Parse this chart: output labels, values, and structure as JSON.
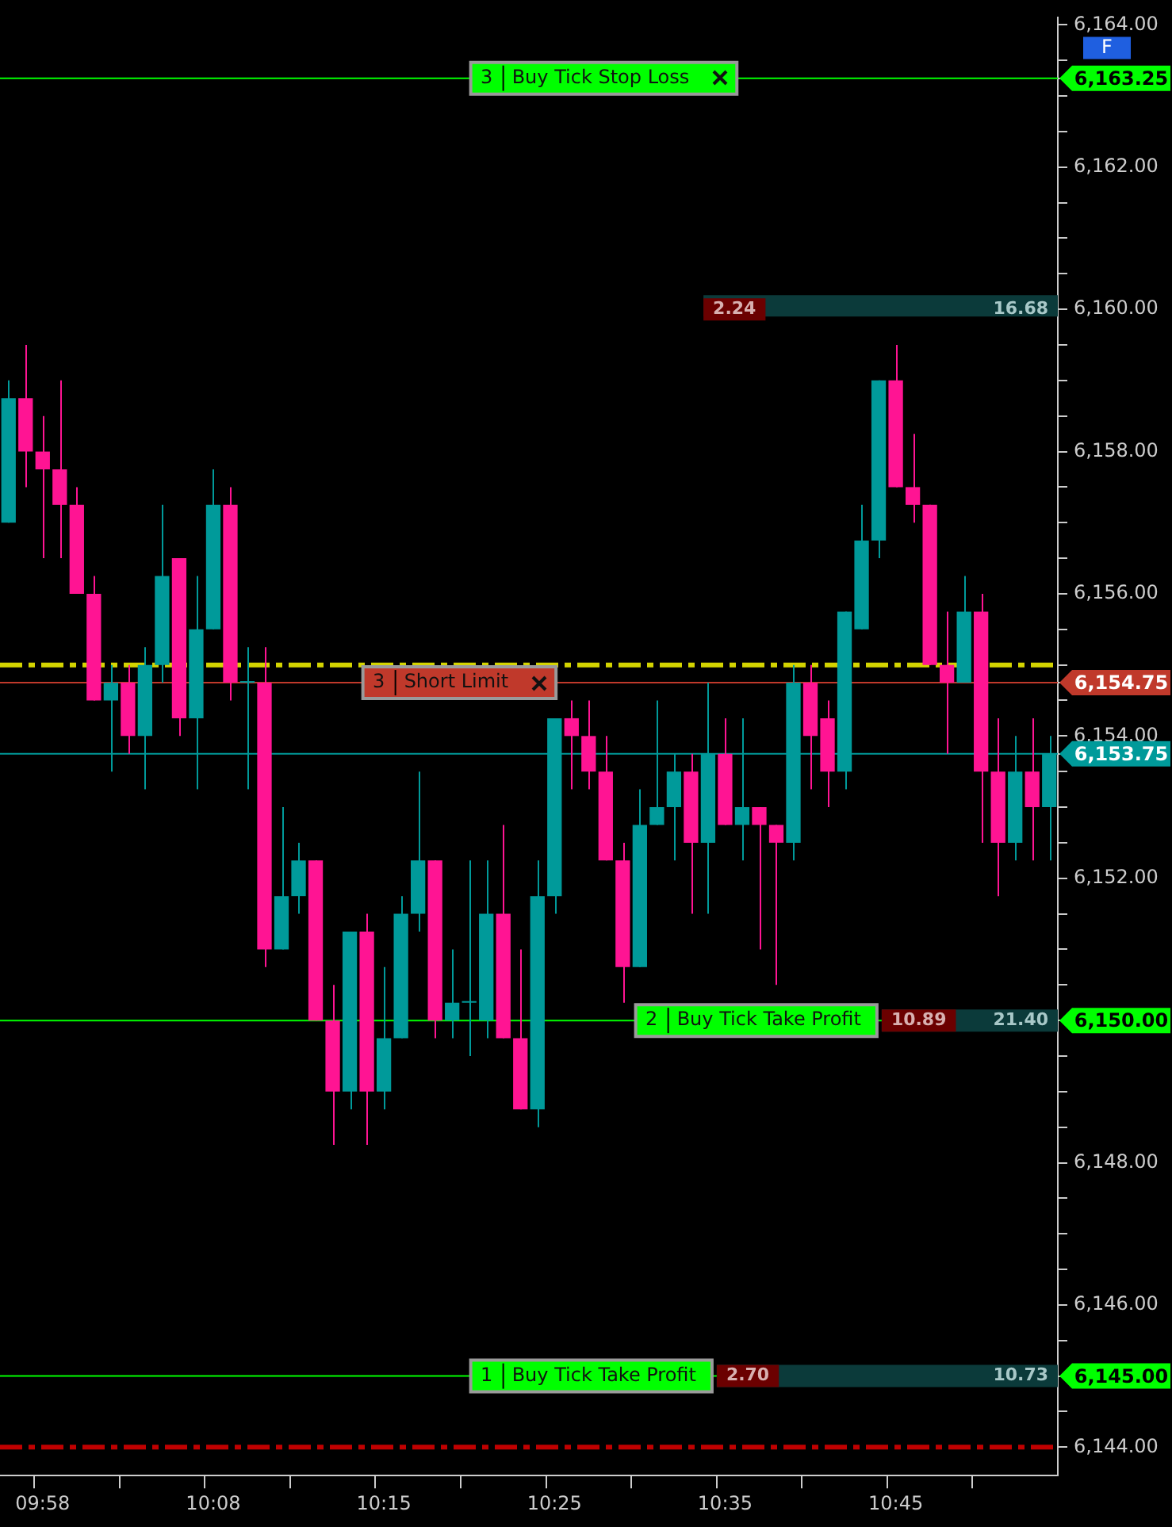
{
  "chart_data": {
    "type": "candlestick",
    "categories": [
      null,
      null,
      "09:58",
      null,
      null,
      null,
      null,
      null,
      null,
      null,
      null,
      null,
      "10:08",
      null,
      null,
      null,
      null,
      null,
      null,
      null,
      null,
      null,
      "10:15",
      null,
      null,
      null,
      null,
      null,
      null,
      null,
      null,
      null,
      "10:25",
      null,
      null,
      null,
      null,
      null,
      null,
      null,
      null,
      null,
      "10:35",
      null,
      null,
      null,
      null,
      null,
      null,
      null,
      null,
      null,
      "10:45",
      null,
      null,
      null,
      null,
      null,
      null,
      null,
      null,
      null
    ],
    "ohlc": [
      [
        6157.0,
        6159.0,
        6157.0,
        6158.75
      ],
      [
        6158.75,
        6159.5,
        6157.5,
        6158.0
      ],
      [
        6158.0,
        6158.5,
        6156.5,
        6157.75
      ],
      [
        6157.75,
        6159.0,
        6156.5,
        6157.25
      ],
      [
        6157.25,
        6157.5,
        6156.0,
        6156.0
      ],
      [
        6156.0,
        6156.25,
        6154.5,
        6154.5
      ],
      [
        6154.5,
        6155.0,
        6153.5,
        6154.75
      ],
      [
        6154.75,
        6155.0,
        6153.75,
        6154.0
      ],
      [
        6154.0,
        6155.25,
        6153.25,
        6155.0
      ],
      [
        6155.0,
        6157.25,
        6154.75,
        6156.25
      ],
      [
        6156.5,
        6156.5,
        6154.0,
        6154.25
      ],
      [
        6154.25,
        6156.25,
        6153.25,
        6155.5
      ],
      [
        6155.5,
        6157.75,
        6155.5,
        6157.25
      ],
      [
        6157.25,
        6157.5,
        6154.5,
        6154.75
      ],
      [
        6154.75,
        6155.25,
        6153.25,
        6154.75
      ],
      [
        6154.75,
        6155.25,
        6150.75,
        6151.0
      ],
      [
        6151.0,
        6153.0,
        6151.0,
        6151.75
      ],
      [
        6151.75,
        6152.5,
        6151.5,
        6152.25
      ],
      [
        6152.25,
        6152.25,
        6150.0,
        6150.0
      ],
      [
        6150.0,
        6150.5,
        6148.25,
        6149.0
      ],
      [
        6149.0,
        6151.25,
        6148.75,
        6151.25
      ],
      [
        6151.25,
        6151.5,
        6148.25,
        6149.0
      ],
      [
        6149.0,
        6150.75,
        6148.75,
        6149.75
      ],
      [
        6149.75,
        6151.75,
        6149.75,
        6151.5
      ],
      [
        6151.5,
        6153.5,
        6151.25,
        6152.25
      ],
      [
        6152.25,
        6152.25,
        6149.75,
        6150.0
      ],
      [
        6150.0,
        6151.0,
        6149.75,
        6150.25
      ],
      [
        6150.25,
        6152.25,
        6149.5,
        6150.25
      ],
      [
        6150.0,
        6152.25,
        6149.75,
        6151.5
      ],
      [
        6151.5,
        6152.75,
        6149.75,
        6149.75
      ],
      [
        6149.75,
        6151.0,
        6148.75,
        6148.75
      ],
      [
        6148.75,
        6152.25,
        6148.5,
        6151.75
      ],
      [
        6151.75,
        6154.25,
        6151.5,
        6154.25
      ],
      [
        6154.25,
        6154.5,
        6153.25,
        6154.0
      ],
      [
        6154.0,
        6154.5,
        6153.25,
        6153.5
      ],
      [
        6153.5,
        6154.0,
        6152.25,
        6152.25
      ],
      [
        6152.25,
        6152.5,
        6150.25,
        6150.75
      ],
      [
        6150.75,
        6153.25,
        6150.75,
        6152.75
      ],
      [
        6152.75,
        6154.5,
        6152.75,
        6153.0
      ],
      [
        6153.0,
        6153.75,
        6152.25,
        6153.5
      ],
      [
        6153.5,
        6153.75,
        6151.5,
        6152.5
      ],
      [
        6152.5,
        6154.75,
        6151.5,
        6153.75
      ],
      [
        6153.75,
        6154.25,
        6152.75,
        6152.75
      ],
      [
        6152.75,
        6154.25,
        6152.25,
        6153.0
      ],
      [
        6153.0,
        6153.0,
        6151.0,
        6152.75
      ],
      [
        6152.75,
        6152.75,
        6150.5,
        6152.5
      ],
      [
        6152.5,
        6155.0,
        6152.25,
        6154.75
      ],
      [
        6154.75,
        6155.0,
        6153.25,
        6154.0
      ],
      [
        6154.25,
        6154.5,
        6153.0,
        6153.5
      ],
      [
        6153.5,
        6155.75,
        6153.25,
        6155.75
      ],
      [
        6155.5,
        6157.25,
        6155.5,
        6156.75
      ],
      [
        6156.75,
        6159.0,
        6156.5,
        6159.0
      ],
      [
        6159.0,
        6159.5,
        6157.5,
        6157.5
      ],
      [
        6157.5,
        6158.25,
        6157.0,
        6157.25
      ],
      [
        6157.25,
        6157.25,
        6155.0,
        6155.0
      ],
      [
        6155.0,
        6155.75,
        6153.75,
        6154.75
      ],
      [
        6154.75,
        6156.25,
        6154.75,
        6155.75
      ],
      [
        6155.75,
        6156.0,
        6152.5,
        6153.5
      ],
      [
        6153.5,
        6154.25,
        6151.75,
        6152.5
      ],
      [
        6152.5,
        6154.0,
        6152.25,
        6153.5
      ],
      [
        6153.5,
        6154.25,
        6152.25,
        6153.0
      ],
      [
        6153.0,
        6154.0,
        6152.25,
        6153.75
      ]
    ],
    "colors": [
      "#009a9a",
      "#ff1493",
      "#ff1493",
      "#ff1493",
      "#ff1493",
      "#ff1493",
      "#009a9a",
      "#ff1493",
      "#009a9a",
      "#009a9a",
      "#ff1493",
      "#009a9a",
      "#009a9a",
      "#ff1493",
      "#009a9a",
      "#ff1493",
      "#009a9a",
      "#009a9a",
      "#ff1493",
      "#ff1493",
      "#009a9a",
      "#ff1493",
      "#009a9a",
      "#009a9a",
      "#009a9a",
      "#ff1493",
      "#009a9a",
      "#009a9a",
      "#009a9a",
      "#ff1493",
      "#ff1493",
      "#009a9a",
      "#009a9a",
      "#ff1493",
      "#ff1493",
      "#ff1493",
      "#ff1493",
      "#009a9a",
      "#009a9a",
      "#009a9a",
      "#ff1493",
      "#009a9a",
      "#ff1493",
      "#009a9a",
      "#ff1493",
      "#ff1493",
      "#009a9a",
      "#ff1493",
      "#ff1493",
      "#009a9a",
      "#009a9a",
      "#009a9a",
      "#ff1493",
      "#ff1493",
      "#ff1493",
      "#ff1493",
      "#009a9a",
      "#ff1493",
      "#ff1493",
      "#009a9a",
      "#ff1493",
      "#009a9a"
    ],
    "ylim": [
      6143.6,
      6164.1
    ],
    "yticks": [
      {
        "value": 6144,
        "label": "6,144.00"
      },
      {
        "value": 6144.5,
        "label": null
      },
      {
        "value": 6145,
        "label": "6,145.00"
      },
      {
        "value": 6145.5,
        "label": null
      },
      {
        "value": 6146,
        "label": "6,146.00"
      },
      {
        "value": 6146.5,
        "label": null
      },
      {
        "value": 6147,
        "label": null
      },
      {
        "value": 6147.5,
        "label": null
      },
      {
        "value": 6148,
        "label": "6,148.00"
      },
      {
        "value": 6148.5,
        "label": null
      },
      {
        "value": 6149,
        "label": null
      },
      {
        "value": 6149.5,
        "label": null
      },
      {
        "value": 6150,
        "label": "6,150.00"
      },
      {
        "value": 6150.5,
        "label": null
      },
      {
        "value": 6151,
        "label": null
      },
      {
        "value": 6151.5,
        "label": null
      },
      {
        "value": 6152,
        "label": "6,152.00"
      },
      {
        "value": 6152.5,
        "label": null
      },
      {
        "value": 6153,
        "label": null
      },
      {
        "value": 6153.5,
        "label": null
      },
      {
        "value": 6153.75,
        "label": "6,153.75"
      },
      {
        "value": 6154,
        "label": "6,154.00"
      },
      {
        "value": 6154.5,
        "label": null
      },
      {
        "value": 6154.75,
        "label": "6,154.75"
      },
      {
        "value": 6155,
        "label": null
      },
      {
        "value": 6155.5,
        "label": null
      },
      {
        "value": 6156,
        "label": "6,156.00"
      },
      {
        "value": 6156.5,
        "label": null
      },
      {
        "value": 6157,
        "label": null
      },
      {
        "value": 6157.5,
        "label": null
      },
      {
        "value": 6158,
        "label": "6,158.00"
      },
      {
        "value": 6158.5,
        "label": null
      },
      {
        "value": 6159,
        "label": null
      },
      {
        "value": 6159.5,
        "label": null
      },
      {
        "value": 6160,
        "label": "6,160.00"
      },
      {
        "value": 6160.5,
        "label": null
      },
      {
        "value": 6161,
        "label": null
      },
      {
        "value": 6161.5,
        "label": null
      },
      {
        "value": 6162,
        "label": "6,162.00"
      },
      {
        "value": 6162.5,
        "label": null
      },
      {
        "value": 6163,
        "label": null
      },
      {
        "value": 6163.25,
        "label": "6,163.25"
      },
      {
        "value": 6163.5,
        "label": null
      },
      {
        "value": 6164,
        "label": "6,164.00"
      }
    ],
    "ref_lines": [
      {
        "axis": "y",
        "value": 6163.25,
        "label": "3 Buy Tick Stop Loss",
        "color": "#00ff00",
        "line_style": "solid"
      },
      {
        "axis": "y",
        "value": 6154.75,
        "label": "3 Short Limit",
        "color": "#c0392b",
        "line_style": "solid"
      },
      {
        "axis": "y",
        "value": 6153.75,
        "label": null,
        "color": "#009a9a",
        "line_style": "solid"
      },
      {
        "axis": "y",
        "value": 6150.0,
        "label": "2 Buy Tick Take Profit",
        "color": "#00ff00",
        "line_style": "solid"
      },
      {
        "axis": "y",
        "value": 6145.0,
        "label": "1 Buy Tick Take Profit",
        "color": "#00ff00",
        "line_style": "solid"
      },
      {
        "axis": "y",
        "value": 6155.0,
        "label": null,
        "color": "#d4d400",
        "line_style": "dashed"
      },
      {
        "axis": "y",
        "value": 6144.0,
        "label": null,
        "color": "#c00000",
        "line_style": "dashed"
      }
    ],
    "bands": [
      {
        "axis": "y",
        "from": 6159.9,
        "to": 6160.2,
        "color": "#0b3a3a"
      }
    ],
    "annotations": [
      "F",
      {
        "text": "2.24",
        "y": 6160.0
      },
      {
        "text": "16.68",
        "y": 6160.0
      },
      {
        "text": "10.89",
        "y": 6150.0
      },
      {
        "text": "21.40",
        "y": 6150.0
      },
      {
        "text": "2.70",
        "y": 6145.0
      },
      {
        "text": "10.73",
        "y": 6145.0
      }
    ],
    "grid": false,
    "legend": false
  }
}
